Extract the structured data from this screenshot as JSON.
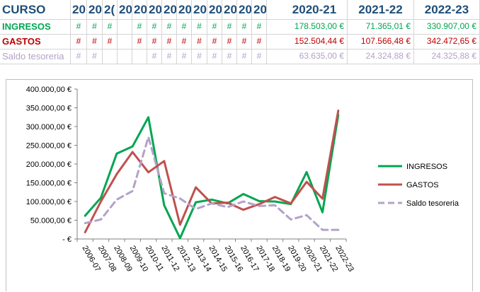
{
  "sheet": {
    "header": {
      "curso": "CURSO",
      "short_years": [
        "20",
        "20",
        "2(",
        "20",
        "20",
        "20",
        "20",
        "20",
        "20",
        "20",
        "20",
        "20",
        "20"
      ],
      "big_years": [
        "2020-21",
        "2021-22",
        "2022-23"
      ]
    },
    "rows": [
      {
        "label": "INGRESOS",
        "color": "#00a651",
        "hashes": [
          "#",
          "#",
          "#",
          "",
          "#",
          "#",
          "#",
          "#",
          "#",
          "#",
          "#",
          "#",
          "#"
        ],
        "values": [
          "178.503,00 €",
          "71.365,01 €",
          "330.907,00 €"
        ]
      },
      {
        "label": "GASTOS",
        "color": "#c00000",
        "hashes": [
          "#",
          "#",
          "#",
          "",
          "#",
          "#",
          "#",
          "#",
          "#",
          "#",
          "#",
          "#",
          "#"
        ],
        "values": [
          "152.504,44 €",
          "107.566,48 €",
          "342.472,65 €"
        ]
      },
      {
        "label": "Saldo tesoreria",
        "color": "#b3a2c7",
        "hashes": [
          "#",
          "#",
          "",
          "",
          "",
          "#",
          "#",
          "#",
          "#",
          "#",
          "#",
          "#",
          "#"
        ],
        "values": [
          "63.635,00 €",
          "24.324,88 €",
          "24.325,88 €"
        ]
      }
    ]
  },
  "chart_data": {
    "type": "line",
    "x": [
      "2006-07",
      "2007-08",
      "2008-09",
      "2009-10",
      "2010-11",
      "2011-12",
      "2012-13",
      "2013-14",
      "2014-15",
      "2015-16",
      "2016-17",
      "2017-18",
      "2018-19",
      "2019-20",
      "2020-21",
      "2021-22",
      "2022-23"
    ],
    "y_ticks": [
      "400.000,00 €",
      "350.000,00 €",
      "300.000,00 €",
      "250.000,00 €",
      "200.000,00 €",
      "150.000,00 €",
      "100.000,00 €",
      "50.000,00 €",
      "- €"
    ],
    "ylim": [
      0,
      400000
    ],
    "legend_position": "right",
    "grid": false,
    "series": [
      {
        "name": "INGRESOS",
        "color": "#00a651",
        "dash": false,
        "values": [
          62000,
          110000,
          228000,
          247000,
          325000,
          90000,
          2000,
          98000,
          105000,
          95000,
          120000,
          101000,
          100000,
          93000,
          178503,
          71365,
          330907
        ]
      },
      {
        "name": "GASTOS",
        "color": "#c0504d",
        "dash": false,
        "values": [
          18000,
          100000,
          173000,
          232000,
          178000,
          208000,
          38000,
          138000,
          95000,
          97000,
          78000,
          93000,
          112000,
          95000,
          152504,
          107566,
          342473
        ]
      },
      {
        "name": "Saldo tesoreria",
        "color": "#b3a2c7",
        "dash": true,
        "values": [
          42000,
          52000,
          105000,
          128000,
          272000,
          122000,
          108000,
          80000,
          95000,
          85000,
          100000,
          88000,
          90000,
          52000,
          63635,
          24325,
          24326
        ]
      }
    ]
  }
}
